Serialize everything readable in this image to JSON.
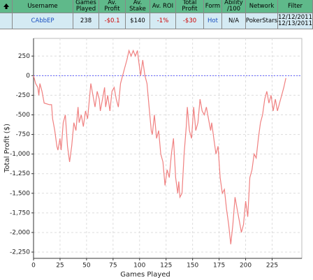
{
  "table": {
    "header": [
      "Username",
      "Games Played",
      "Av. Profit",
      "Av. Stake",
      "Av. ROI",
      "Total Profit",
      "Form",
      "Ability /100",
      "Network",
      "Filter"
    ],
    "rows": [
      [
        "CAbbEP",
        "238",
        "-$0.1",
        "$140",
        "-1%",
        "-$30",
        "Hot",
        "N/A",
        "PokerStars",
        "12/12/2011 12/13/2011"
      ]
    ]
  },
  "chart_data": {
    "type": "line",
    "x_label": "Games Played",
    "y_label": "Total Profit ($)",
    "color": "#f08080",
    "reference_line": {
      "value": 0,
      "color": "#6060ff"
    },
    "grid": true,
    "xlim": [
      0,
      253
    ],
    "ylim": [
      -2330,
      475
    ],
    "xticks": [
      0,
      25,
      50,
      75,
      100,
      125,
      150,
      175,
      200,
      225
    ],
    "yticks": [
      250,
      0,
      -250,
      -500,
      -750,
      {
        "value": -1000,
        "label": "-1,000"
      },
      {
        "value": -1250,
        "label": "-1,250"
      },
      {
        "value": -1500,
        "label": "-1,500"
      },
      {
        "value": -1750,
        "label": "-1,750"
      },
      {
        "value": -2000,
        "label": "-2,000"
      },
      {
        "value": -2250,
        "label": "-2,250"
      }
    ],
    "x": [
      0,
      2,
      4,
      5,
      6,
      8,
      10,
      15,
      17,
      18,
      20,
      22,
      23,
      25,
      26,
      28,
      30,
      32,
      34,
      36,
      38,
      40,
      42,
      43,
      45,
      47,
      49,
      51,
      54,
      56,
      58,
      60,
      62,
      63,
      65,
      67,
      68,
      70,
      72,
      74,
      76,
      78,
      80,
      82,
      84,
      86,
      88,
      90,
      92,
      94,
      96,
      98,
      99,
      101,
      103,
      105,
      107,
      109,
      111,
      112,
      114,
      116,
      118,
      120,
      122,
      124,
      126,
      128,
      130,
      132,
      134,
      136,
      137,
      138,
      140,
      142,
      144,
      145,
      147,
      149,
      151,
      153,
      155,
      157,
      159,
      161,
      163,
      165,
      167,
      168,
      170,
      172,
      174,
      176,
      178,
      180,
      182,
      184,
      186,
      188,
      190,
      192,
      194,
      196,
      198,
      200,
      202,
      204,
      206,
      208,
      210,
      212,
      214,
      216,
      218,
      220,
      222,
      224,
      226,
      228,
      230,
      232,
      234,
      236,
      238
    ],
    "values": [
      0,
      -100,
      -150,
      -250,
      -100,
      -200,
      -350,
      -370,
      -370,
      -550,
      -700,
      -900,
      -950,
      -800,
      -950,
      -600,
      -500,
      -900,
      -1100,
      -900,
      -600,
      -700,
      -400,
      -600,
      -500,
      -650,
      -450,
      -550,
      -100,
      -250,
      -400,
      -200,
      -300,
      -450,
      -300,
      -150,
      -400,
      -250,
      -450,
      -200,
      -150,
      -300,
      -400,
      -100,
      0,
      100,
      200,
      320,
      250,
      320,
      250,
      320,
      200,
      0,
      200,
      0,
      -100,
      -400,
      -700,
      -750,
      -500,
      -800,
      -700,
      -1000,
      -1100,
      -1400,
      -1200,
      -1300,
      -1000,
      -800,
      -1300,
      -1500,
      -1350,
      -1550,
      -1500,
      -1000,
      -650,
      -400,
      -700,
      -800,
      -400,
      -700,
      -600,
      -300,
      -450,
      -500,
      -400,
      -550,
      -700,
      -600,
      -800,
      -1000,
      -900,
      -1300,
      -1500,
      -1450,
      -1700,
      -1900,
      -2150,
      -1900,
      -1550,
      -1700,
      -1850,
      -2000,
      -1900,
      -1600,
      -1800,
      -1300,
      -1200,
      -1000,
      -1050,
      -800,
      -600,
      -500,
      -300,
      -200,
      -350,
      -250,
      -450,
      -300,
      -450,
      -350,
      -250,
      -150,
      -30
    ]
  }
}
